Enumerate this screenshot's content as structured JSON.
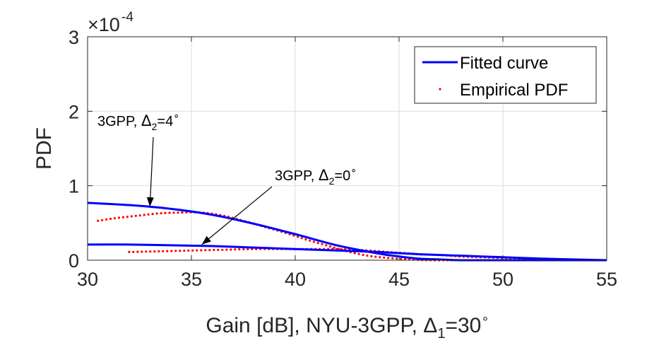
{
  "chart_data": {
    "type": "line",
    "xlabel_prefix": "Gain [dB], NYU-3GPP, ",
    "xlabel_delta": "Δ",
    "xlabel_sub": "1",
    "xlabel_val": "=30",
    "xlabel_deg": "∘",
    "ylabel": "PDF",
    "y_exponent_prefix": "×10",
    "y_exponent": "-4",
    "xlim": [
      30,
      55
    ],
    "ylim": [
      0,
      3
    ],
    "xticks": [
      "30",
      "35",
      "40",
      "45",
      "50",
      "55"
    ],
    "yticks": [
      "0",
      "1",
      "2",
      "3"
    ],
    "xtick_values": [
      30,
      35,
      40,
      45,
      50,
      55
    ],
    "ytick_values": [
      0,
      1,
      2,
      3
    ],
    "grid": true,
    "legend_position": "top-right",
    "legend": [
      {
        "label": "Fitted curve",
        "style": "solid",
        "color": "#0000ff"
      },
      {
        "label": "Empirical PDF",
        "style": "dotted",
        "color": "#ff0000"
      }
    ],
    "series": [
      {
        "color": "#0000ff",
        "style": "solid",
        "legend_ref": "Fitted curve",
        "x": [
          30,
          32,
          34,
          36,
          38,
          40,
          42,
          44,
          45,
          46,
          47,
          48,
          50,
          55
        ],
        "y": [
          0.77,
          0.74,
          0.69,
          0.61,
          0.49,
          0.35,
          0.2,
          0.09,
          0.05,
          0.02,
          0.01,
          0.0,
          0.0,
          0.0
        ]
      },
      {
        "color": "#0000ff",
        "style": "solid",
        "legend_ref": "Fitted curve",
        "x": [
          30,
          32,
          34,
          36,
          38,
          40,
          42,
          44,
          46,
          48,
          50,
          52,
          55
        ],
        "y": [
          0.21,
          0.21,
          0.2,
          0.19,
          0.17,
          0.15,
          0.13,
          0.11,
          0.08,
          0.06,
          0.04,
          0.02,
          0.0
        ]
      },
      {
        "color": "#ff0000",
        "style": "dotted",
        "legend_ref": "Empirical PDF",
        "x": [
          30.5,
          31.5,
          32.5,
          33.5,
          34.5,
          35.5,
          36.5,
          37.5,
          38.5,
          39.5,
          40.5,
          41.5,
          42.5,
          43.5,
          44.5,
          45.5,
          46.5,
          47.5,
          48.5,
          49.5
        ],
        "y": [
          0.53,
          0.57,
          0.6,
          0.63,
          0.64,
          0.64,
          0.6,
          0.53,
          0.45,
          0.37,
          0.28,
          0.2,
          0.12,
          0.06,
          0.03,
          0.01,
          0.0,
          0.0,
          0.0,
          0.0
        ]
      },
      {
        "color": "#ff0000",
        "style": "dotted",
        "legend_ref": "Empirical PDF",
        "x": [
          32,
          33.5,
          35,
          36.5,
          38,
          39,
          40,
          41,
          42,
          43,
          44,
          45,
          46,
          47,
          48,
          49,
          50,
          51,
          52,
          53,
          54,
          55
        ],
        "y": [
          0.11,
          0.12,
          0.13,
          0.14,
          0.15,
          0.15,
          0.15,
          0.15,
          0.15,
          0.14,
          0.12,
          0.1,
          0.08,
          0.07,
          0.05,
          0.04,
          0.03,
          0.02,
          0.01,
          0.005,
          0.0,
          0.0
        ]
      }
    ],
    "annotations": [
      {
        "text_prefix": "3GPP, ",
        "delta": "Δ",
        "sub": "2",
        "value": "=4",
        "deg": "∘",
        "arrow_to": [
          33,
          0.72
        ]
      },
      {
        "text_prefix": "3GPP, ",
        "delta": "Δ",
        "sub": "2",
        "value": "=0",
        "deg": "∘",
        "arrow_to": [
          35.5,
          0.21
        ]
      }
    ]
  }
}
